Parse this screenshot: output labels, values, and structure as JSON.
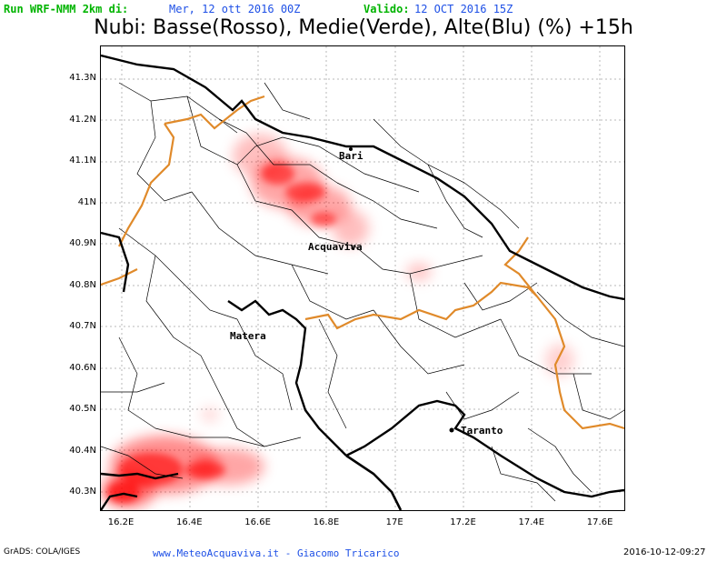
{
  "header": {
    "run_label": "Run WRF-NMM 2km di:",
    "run_value": "Mer, 12 ott 2016 00Z",
    "valid_label": "Valido:",
    "valid_value": "12 OCT 2016 15Z"
  },
  "title": "Nubi: Basse(Rosso), Medie(Verde), Alte(Blu) (%) +15h",
  "lat_labels": [
    "41.3N",
    "41.2N",
    "41.1N",
    "41N",
    "40.9N",
    "40.8N",
    "40.7N",
    "40.6N",
    "40.5N",
    "40.4N",
    "40.3N"
  ],
  "lon_labels": [
    "16.2E",
    "16.4E",
    "16.6E",
    "16.8E",
    "17E",
    "17.2E",
    "17.4E",
    "17.6E"
  ],
  "cities": {
    "bari": "Bari",
    "acquaviva": "Acquaviva",
    "matera": "Matera",
    "taranto": "Taranto"
  },
  "footer": {
    "grads": "GrADS: COLA/IGES",
    "site": "www.MeteoAcquaviva.it  -  Giacomo Tricarico",
    "timestamp": "2016-10-12-09:27"
  },
  "colors": {
    "cloud_low": "#ff0000",
    "region_border": "#e08a2a",
    "province_border": "#000000",
    "header_green": "#00b400",
    "header_blue": "#1e50e6"
  }
}
